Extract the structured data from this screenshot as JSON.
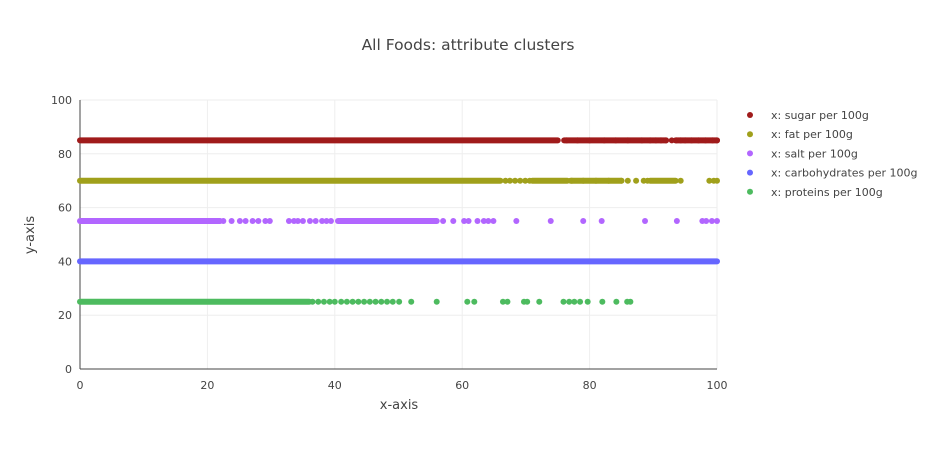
{
  "chart_data": {
    "type": "scatter",
    "title": "All Foods: attribute clusters",
    "xlabel": "x-axis",
    "ylabel": "y-axis",
    "xlim": [
      0,
      100
    ],
    "ylim": [
      0,
      100
    ],
    "x_ticks": [
      "0",
      "20",
      "40",
      "60",
      "80",
      "100"
    ],
    "y_ticks": [
      "0",
      "20",
      "40",
      "60",
      "80",
      "100"
    ],
    "grid": true,
    "legend_position": "top-right",
    "series": [
      {
        "name": "x: sugar per 100g",
        "color": "#a01b1b",
        "y": 85,
        "dense_ranges": [
          [
            0,
            75
          ],
          [
            76,
            92
          ],
          [
            93.5,
            100
          ]
        ],
        "x": [
          76.4,
          78.1,
          80.0,
          82.3,
          84.1,
          86.0,
          88.2,
          89.5,
          90.4,
          91.2,
          92.0,
          92.9,
          93.6,
          94.3,
          95.0,
          96.0,
          97.1,
          98.2,
          99.3,
          100.0
        ]
      },
      {
        "name": "x: fat per 100g",
        "color": "#a0a01b",
        "y": 70,
        "dense_ranges": [
          [
            0,
            66
          ],
          [
            71,
            76.5
          ],
          [
            77,
            85
          ],
          [
            89.5,
            93.5
          ]
        ],
        "x": [
          66.8,
          67.5,
          68.3,
          69.1,
          69.9,
          70.6,
          77.2,
          79.0,
          81.0,
          83.0,
          85.0,
          86.0,
          87.3,
          88.5,
          89.1,
          94.3,
          98.8,
          99.5,
          100.0
        ]
      },
      {
        "name": "x: salt per 100g",
        "color": "#b266ff",
        "y": 55,
        "dense_ranges": [
          [
            0,
            22
          ],
          [
            40.5,
            56
          ]
        ],
        "x": [
          22.5,
          23.8,
          25.1,
          26.0,
          27.1,
          28.0,
          29.1,
          29.8,
          32.8,
          33.6,
          34.2,
          35.0,
          36.1,
          37.0,
          38.0,
          38.7,
          39.4,
          57.0,
          58.6,
          60.3,
          61.0,
          62.4,
          63.4,
          64.1,
          64.9,
          68.5,
          73.9,
          79.0,
          81.9,
          88.7,
          93.7,
          97.7,
          98.3,
          99.2,
          100.0
        ]
      },
      {
        "name": "x: carbohydrates per 100g",
        "color": "#6666ff",
        "y": 40,
        "dense_ranges": [
          [
            0,
            100
          ]
        ],
        "x": []
      },
      {
        "name": "x: proteins per 100g",
        "color": "#4dbb5f",
        "y": 25,
        "dense_ranges": [
          [
            0,
            36
          ]
        ],
        "x": [
          36.5,
          37.4,
          38.3,
          39.2,
          40.0,
          41.0,
          41.9,
          42.8,
          43.7,
          44.6,
          45.5,
          46.4,
          47.3,
          48.2,
          49.1,
          50.1,
          52.0,
          56.0,
          60.8,
          61.9,
          66.4,
          67.1,
          69.7,
          70.2,
          72.1,
          75.9,
          76.8,
          77.6,
          78.5,
          79.7,
          82.0,
          84.2,
          85.9,
          86.4
        ]
      }
    ]
  }
}
